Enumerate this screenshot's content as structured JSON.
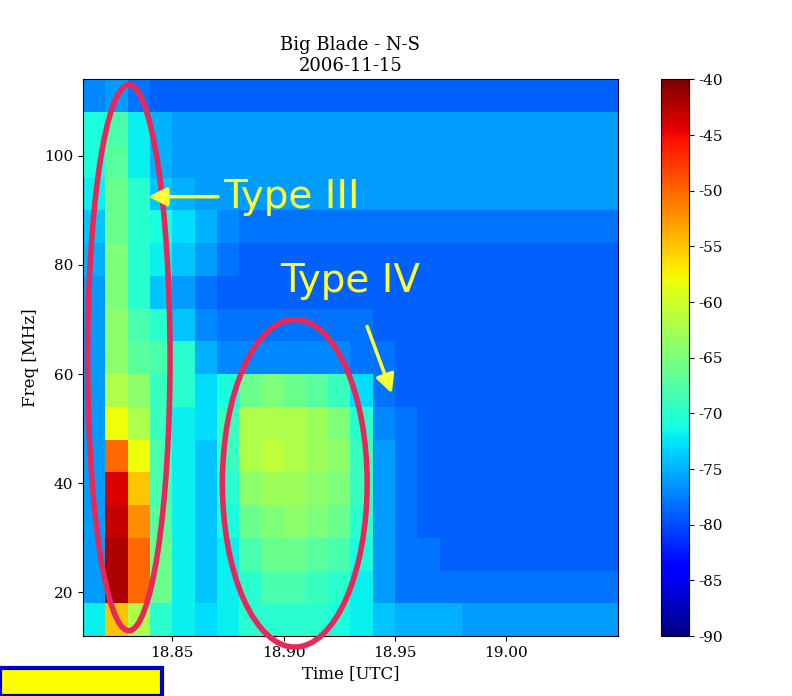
{
  "chart_data": {
    "type": "heatmap",
    "title": "Big Blade - N-S",
    "subtitle": "2006-11-15",
    "x_label": "Time [UTC]",
    "y_label": "Freq [MHz]",
    "color": "jet",
    "xlim": [
      18.81,
      19.05
    ],
    "ylim": [
      12,
      114
    ],
    "xticks": [
      18.85,
      {
        "value": 18.9,
        "label": "18.90"
      },
      18.95,
      {
        "value": 19.0,
        "label": "19.00"
      }
    ],
    "yticks": [
      20,
      40,
      60,
      80,
      100
    ],
    "colorbar": {
      "range": [
        -90,
        -40
      ],
      "ticks": [
        -40,
        -45,
        -50,
        -55,
        -60,
        -65,
        -70,
        -75,
        -80,
        -85,
        -90
      ]
    },
    "time_edges": [
      18.81,
      18.82,
      18.83,
      18.84,
      18.85,
      18.86,
      18.87,
      18.88,
      18.89,
      18.9,
      18.91,
      18.92,
      18.93,
      18.94,
      18.95,
      18.96,
      18.97,
      18.98,
      18.99,
      19.0,
      19.01,
      19.02,
      19.03,
      19.04,
      19.05
    ],
    "freq_edges": [
      12,
      18,
      24,
      30,
      36,
      42,
      48,
      54,
      60,
      66,
      72,
      78,
      84,
      90,
      96,
      102,
      108,
      114
    ],
    "cells": [
      [
        -72,
        -55,
        -62,
        -70,
        -72,
        -73,
        -72,
        -70,
        -70,
        -70,
        -70,
        -71,
        -72,
        -74,
        -75,
        -75,
        -75,
        -76,
        -76,
        -76,
        -76,
        -76,
        -76,
        -76
      ],
      [
        -76,
        -42,
        -50,
        -66,
        -72,
        -74,
        -72,
        -70,
        -68,
        -68,
        -69,
        -70,
        -72,
        -76,
        -78,
        -78,
        -78,
        -78,
        -78,
        -78,
        -78,
        -78,
        -78,
        -78
      ],
      [
        -76,
        -42,
        -50,
        -66,
        -72,
        -74,
        -72,
        -68,
        -66,
        -66,
        -67,
        -68,
        -71,
        -76,
        -78,
        -78,
        -79,
        -79,
        -79,
        -79,
        -79,
        -79,
        -79,
        -79
      ],
      [
        -76,
        -43,
        -52,
        -67,
        -72,
        -74,
        -71,
        -66,
        -65,
        -64,
        -65,
        -66,
        -70,
        -76,
        -78,
        -79,
        -79,
        -79,
        -79,
        -79,
        -79,
        -79,
        -79,
        -79
      ],
      [
        -76,
        -44,
        -55,
        -68,
        -72,
        -74,
        -70,
        -64,
        -63,
        -63,
        -64,
        -65,
        -69,
        -76,
        -78,
        -79,
        -79,
        -79,
        -79,
        -79,
        -79,
        -79,
        -79,
        -79
      ],
      [
        -76,
        -50,
        -58,
        -68,
        -72,
        -74,
        -69,
        -62,
        -61,
        -62,
        -63,
        -64,
        -69,
        -76,
        -78,
        -79,
        -79,
        -79,
        -79,
        -79,
        -79,
        -79,
        -79,
        -79
      ],
      [
        -76,
        -58,
        -62,
        -69,
        -72,
        -73,
        -69,
        -62,
        -62,
        -62,
        -63,
        -65,
        -70,
        -77,
        -78,
        -79,
        -79,
        -79,
        -79,
        -79,
        -79,
        -79,
        -79,
        -79
      ],
      [
        -76,
        -62,
        -64,
        -69,
        -70,
        -73,
        -71,
        -66,
        -65,
        -66,
        -67,
        -69,
        -73,
        -78,
        -79,
        -79,
        -79,
        -79,
        -79,
        -79,
        -79,
        -79,
        -79,
        -79
      ],
      [
        -76,
        -64,
        -67,
        -68,
        -70,
        -75,
        -77,
        -77,
        -77,
        -77,
        -77,
        -77,
        -78,
        -78,
        -79,
        -79,
        -79,
        -79,
        -79,
        -79,
        -79,
        -79,
        -79,
        -79
      ],
      [
        -76,
        -64,
        -68,
        -70,
        -74,
        -77,
        -78,
        -78,
        -78,
        -78,
        -78,
        -78,
        -78,
        -79,
        -79,
        -79,
        -79,
        -79,
        -79,
        -79,
        -79,
        -79,
        -79,
        -79
      ],
      [
        -76,
        -65,
        -70,
        -74,
        -76,
        -78,
        -79,
        -79,
        -79,
        -79,
        -79,
        -79,
        -79,
        -79,
        -79,
        -79,
        -79,
        -79,
        -79,
        -79,
        -79,
        -79,
        -79,
        -79
      ],
      [
        -75,
        -65,
        -70,
        -72,
        -74,
        -76,
        -78,
        -79,
        -79,
        -79,
        -79,
        -79,
        -79,
        -79,
        -79,
        -79,
        -79,
        -79,
        -79,
        -79,
        -79,
        -79,
        -79,
        -79
      ],
      [
        -74,
        -66,
        -70,
        -71,
        -73,
        -75,
        -77,
        -78,
        -78,
        -78,
        -78,
        -78,
        -78,
        -78,
        -78,
        -78,
        -78,
        -78,
        -78,
        -78,
        -78,
        -78,
        -78,
        -78
      ],
      [
        -72,
        -66,
        -70,
        -74,
        -75,
        -76,
        -76,
        -76,
        -76,
        -76,
        -76,
        -76,
        -76,
        -76,
        -76,
        -76,
        -76,
        -76,
        -76,
        -76,
        -76,
        -76,
        -76,
        -76
      ],
      [
        -71,
        -67,
        -72,
        -75,
        -76,
        -76,
        -76,
        -76,
        -76,
        -76,
        -76,
        -76,
        -76,
        -76,
        -76,
        -76,
        -76,
        -76,
        -76,
        -76,
        -76,
        -76,
        -76,
        -76
      ],
      [
        -71,
        -68,
        -72,
        -75,
        -76,
        -76,
        -76,
        -76,
        -76,
        -76,
        -76,
        -76,
        -76,
        -76,
        -76,
        -76,
        -76,
        -76,
        -76,
        -76,
        -76,
        -76,
        -76,
        -76
      ],
      [
        -77,
        -76,
        -78,
        -79,
        -79,
        -79,
        -79,
        -79,
        -79,
        -79,
        -79,
        -79,
        -79,
        -79,
        -79,
        -79,
        -79,
        -79,
        -79,
        -79,
        -79,
        -79,
        -79,
        -79
      ]
    ],
    "annotations": [
      {
        "text": "Type III"
      },
      {
        "text": "Type IV"
      }
    ]
  }
}
